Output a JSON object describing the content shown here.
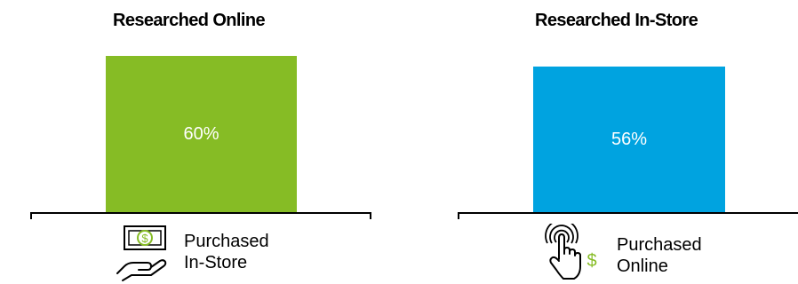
{
  "chart_data": [
    {
      "type": "bar",
      "title": "Researched Online",
      "categories": [
        "Purchased In-Store"
      ],
      "values": [
        60
      ],
      "value_labels": [
        "60%"
      ],
      "xlabel": "",
      "ylabel": "",
      "ylim": [
        0,
        62
      ],
      "grid": false,
      "color": "#86BC25",
      "icon": "cash-in-hand-icon",
      "category_lines": [
        "Purchased",
        "In-Store"
      ]
    },
    {
      "type": "bar",
      "title": "Researched In-Store",
      "categories": [
        "Purchased Online"
      ],
      "values": [
        56
      ],
      "value_labels": [
        "56%"
      ],
      "xlabel": "",
      "ylabel": "",
      "ylim": [
        0,
        62
      ],
      "grid": false,
      "color": "#00A3E0",
      "icon": "touch-tap-dollar-icon",
      "category_lines": [
        "Purchased",
        "Online"
      ]
    }
  ]
}
